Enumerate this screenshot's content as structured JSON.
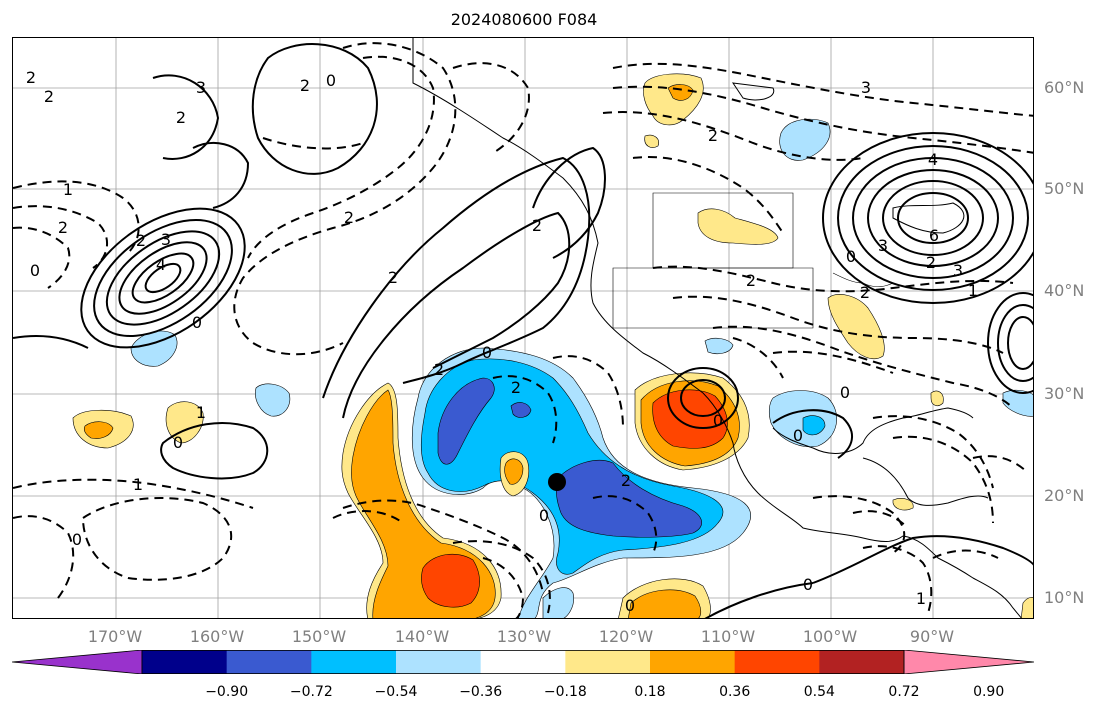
{
  "title": "2024080600 F084",
  "lat_labels": [
    "60°N",
    "50°N",
    "40°N",
    "30°N",
    "20°N",
    "10°N"
  ],
  "lon_labels": [
    "170°W",
    "160°W",
    "150°W",
    "140°W",
    "130°W",
    "120°W",
    "110°W",
    "100°W",
    "90°W"
  ],
  "colorbar": {
    "colors": [
      "#9932cc",
      "#00008b",
      "#3a5ad0",
      "#00bfff",
      "#ade2ff",
      "#ffffff",
      "#ffe88a",
      "#ffa500",
      "#ff4500",
      "#b22222",
      "#ff88aa"
    ],
    "tick_labels": [
      "−0.90",
      "−0.72",
      "−0.54",
      "−0.36",
      "−0.18",
      "0.18",
      "0.36",
      "0.54",
      "0.72",
      "0.90"
    ]
  },
  "contour_labels": [
    "2",
    "2",
    "1",
    "2",
    "0",
    "3",
    "4",
    "2",
    "0",
    "2",
    "3",
    "2",
    "0",
    "2",
    "2",
    "2",
    "3",
    "4",
    "3",
    "6",
    "2",
    "0",
    "2",
    "2",
    "2",
    "1",
    "0",
    "0",
    "2",
    "1",
    "0",
    "2",
    "0",
    "2",
    "0",
    "0",
    "0",
    "1",
    "1",
    "0",
    "3",
    "0"
  ],
  "marker": "point"
}
